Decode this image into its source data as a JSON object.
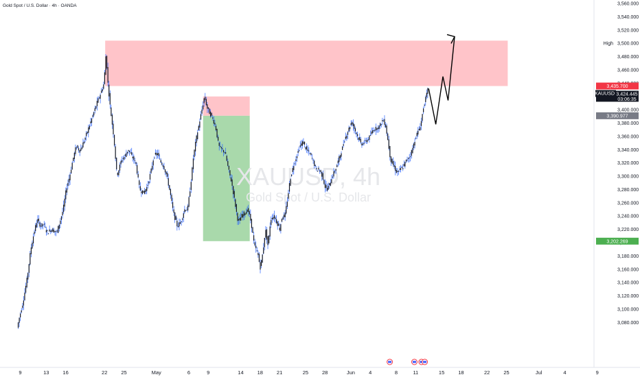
{
  "chart_data": {
    "type": "candlestick",
    "title": "Gold Spot / U.S. Dollar · 4h · OANDA",
    "watermark": {
      "symbol": "XAUUSD, 4h",
      "name": "Gold Spot / U.S. Dollar"
    },
    "y_ticks": [
      "3,560.000",
      "3,540.000",
      "3,520.000",
      "3,500.000",
      "3,480.000",
      "3,460.000",
      "3,440.000",
      "3,420.000",
      "3,400.000",
      "3,380.000",
      "3,360.000",
      "3,340.000",
      "3,320.000",
      "3,300.000",
      "3,280.000",
      "3,260.000",
      "3,240.000",
      "3,220.000",
      "3,200.000",
      "3,180.000",
      "3,160.000",
      "3,140.000",
      "3,120.000",
      "3,100.000",
      "3,080.000"
    ],
    "x_ticks": [
      "9",
      "13",
      "16",
      "22",
      "25",
      "May",
      "6",
      "9",
      "14",
      "18",
      "21",
      "25",
      "28",
      "Jun",
      "4",
      "8",
      "11",
      "15",
      "18",
      "22",
      "25",
      "Jul",
      "4",
      "9"
    ],
    "ylim": [
      3066,
      3566
    ],
    "x_anchors": [
      [
        0,
        9.3
      ],
      [
        1,
        13.3
      ],
      [
        2,
        16.3
      ],
      [
        3,
        22.3
      ],
      [
        4,
        25.3
      ],
      [
        5,
        30.3
      ],
      [
        6,
        35.3
      ],
      [
        7,
        38.3
      ],
      [
        8,
        43.3
      ],
      [
        9,
        46.3
      ],
      [
        10,
        49.3
      ],
      [
        11,
        53.3
      ],
      [
        12,
        56.3
      ],
      [
        13,
        60.3
      ],
      [
        14,
        63.3
      ],
      [
        15,
        67.3
      ],
      [
        16,
        70.3
      ],
      [
        17,
        74.3
      ],
      [
        18,
        77.3
      ],
      [
        19,
        81.3
      ],
      [
        20,
        84.3
      ],
      [
        21,
        89.3
      ],
      [
        22,
        93.3
      ],
      [
        23,
        98.3
      ]
    ],
    "price_points": [
      [
        8.9,
        3072
      ],
      [
        9.3,
        3090
      ],
      [
        9.8,
        3110
      ],
      [
        10.5,
        3150
      ],
      [
        11,
        3190
      ],
      [
        11.5,
        3215
      ],
      [
        12,
        3235
      ],
      [
        12.5,
        3225
      ],
      [
        13,
        3228
      ],
      [
        13.5,
        3215
      ],
      [
        14.2,
        3220
      ],
      [
        15,
        3215
      ],
      [
        15.6,
        3235
      ],
      [
        16,
        3250
      ],
      [
        16.5,
        3282
      ],
      [
        17,
        3300
      ],
      [
        17.5,
        3325
      ],
      [
        18,
        3345
      ],
      [
        18.6,
        3338
      ],
      [
        19.3,
        3355
      ],
      [
        20,
        3375
      ],
      [
        20.6,
        3392
      ],
      [
        21.2,
        3410
      ],
      [
        21.8,
        3425
      ],
      [
        22.3,
        3440
      ],
      [
        22.6,
        3485
      ],
      [
        22.9,
        3440
      ],
      [
        23.3,
        3400
      ],
      [
        23.8,
        3360
      ],
      [
        24.3,
        3300
      ],
      [
        25,
        3325
      ],
      [
        25.5,
        3330
      ],
      [
        26,
        3340
      ],
      [
        26.6,
        3330
      ],
      [
        27.2,
        3320
      ],
      [
        27.8,
        3280
      ],
      [
        28.4,
        3275
      ],
      [
        29,
        3285
      ],
      [
        29.6,
        3310
      ],
      [
        30,
        3330
      ],
      [
        30.5,
        3335
      ],
      [
        31,
        3322
      ],
      [
        31.5,
        3315
      ],
      [
        32,
        3300
      ],
      [
        32.5,
        3275
      ],
      [
        33,
        3245
      ],
      [
        33.6,
        3225
      ],
      [
        34.2,
        3232
      ],
      [
        34.7,
        3250
      ],
      [
        35.2,
        3250
      ],
      [
        35.7,
        3290
      ],
      [
        36.1,
        3330
      ],
      [
        36.5,
        3355
      ],
      [
        37,
        3380
      ],
      [
        37.4,
        3400
      ],
      [
        37.8,
        3420
      ],
      [
        38.2,
        3403
      ],
      [
        38.6,
        3395
      ],
      [
        39,
        3388
      ],
      [
        39.5,
        3375
      ],
      [
        40,
        3345
      ],
      [
        40.5,
        3340
      ],
      [
        41,
        3335
      ],
      [
        41.5,
        3310
      ],
      [
        42,
        3290
      ],
      [
        42.5,
        3260
      ],
      [
        43,
        3230
      ],
      [
        43.5,
        3240
      ],
      [
        44,
        3245
      ],
      [
        44.5,
        3250
      ],
      [
        45,
        3230
      ],
      [
        45.5,
        3195
      ],
      [
        46,
        3185
      ],
      [
        46.4,
        3162
      ],
      [
        46.8,
        3185
      ],
      [
        47.2,
        3220
      ],
      [
        47.6,
        3195
      ],
      [
        48,
        3235
      ],
      [
        48.5,
        3240
      ],
      [
        49,
        3230
      ],
      [
        49.4,
        3220
      ],
      [
        49.8,
        3240
      ],
      [
        50.2,
        3240
      ],
      [
        50.6,
        3265
      ],
      [
        51,
        3295
      ],
      [
        51.5,
        3315
      ],
      [
        52,
        3330
      ],
      [
        52.5,
        3345
      ],
      [
        53,
        3352
      ],
      [
        53.5,
        3340
      ],
      [
        54,
        3335
      ],
      [
        54.5,
        3325
      ],
      [
        55,
        3310
      ],
      [
        55.5,
        3310
      ],
      [
        56,
        3300
      ],
      [
        56.5,
        3280
      ],
      [
        57,
        3285
      ],
      [
        57.5,
        3300
      ],
      [
        58,
        3310
      ],
      [
        58.5,
        3325
      ],
      [
        59,
        3340
      ],
      [
        59.4,
        3355
      ],
      [
        60,
        3370
      ],
      [
        60.5,
        3382
      ],
      [
        61,
        3370
      ],
      [
        61.5,
        3358
      ],
      [
        62,
        3348
      ],
      [
        62.6,
        3352
      ],
      [
        63.2,
        3358
      ],
      [
        63.8,
        3370
      ],
      [
        64.3,
        3372
      ],
      [
        64.8,
        3375
      ],
      [
        65.3,
        3385
      ],
      [
        65.7,
        3378
      ],
      [
        66,
        3360
      ],
      [
        66.5,
        3325
      ],
      [
        67,
        3315
      ],
      [
        67.5,
        3305
      ],
      [
        68,
        3310
      ],
      [
        68.5,
        3315
      ],
      [
        69,
        3325
      ],
      [
        69.5,
        3330
      ],
      [
        70,
        3345
      ],
      [
        70.4,
        3360
      ],
      [
        70.8,
        3368
      ],
      [
        71.2,
        3380
      ],
      [
        71.6,
        3405
      ],
      [
        72,
        3420
      ],
      [
        72.3,
        3432
      ]
    ],
    "future_path": [
      [
        72.3,
        3432
      ],
      [
        73.4,
        3378
      ],
      [
        74.5,
        3450
      ],
      [
        75.3,
        3414
      ],
      [
        76.3,
        3510
      ]
    ],
    "zones": [
      {
        "name": "resistance",
        "x0": 22.4,
        "x1": 84.5,
        "y0": 3435.7,
        "y1": 3504,
        "color": "#ffc1c6"
      },
      {
        "name": "stop",
        "x0": 37.5,
        "x1": 44.7,
        "y0": 3390.977,
        "y1": 3420,
        "color": "#ffc1c6"
      },
      {
        "name": "target",
        "x0": 37.5,
        "x1": 44.7,
        "y0": 3202.269,
        "y1": 3390.977,
        "color": "#a4d7a6"
      }
    ],
    "price_labels": [
      {
        "text": "3,435.700",
        "value": 3435.7,
        "bg": "#f23645",
        "fg": "#ffffff"
      },
      {
        "text": "3,390.977",
        "value": 3390.977,
        "bg": "#787b86",
        "fg": "#ffffff"
      },
      {
        "text": "3,202.269",
        "value": 3202.269,
        "bg": "#4caf50",
        "fg": "#ffffff"
      }
    ],
    "current": {
      "symbol": "XAUUSD",
      "price": "3,424.445",
      "countdown": "03:06:35",
      "value": 3424.445,
      "bg": "#131722",
      "fg": "#ffffff"
    },
    "high_label": {
      "text": "High",
      "value": 3500
    },
    "event_flags": [
      66.3,
      70.1,
      71.2,
      71.7
    ],
    "colors": {
      "up": "#131722",
      "down": "#131722",
      "wick": "#2962ff",
      "line": "#000000",
      "axis": "#131722"
    }
  }
}
